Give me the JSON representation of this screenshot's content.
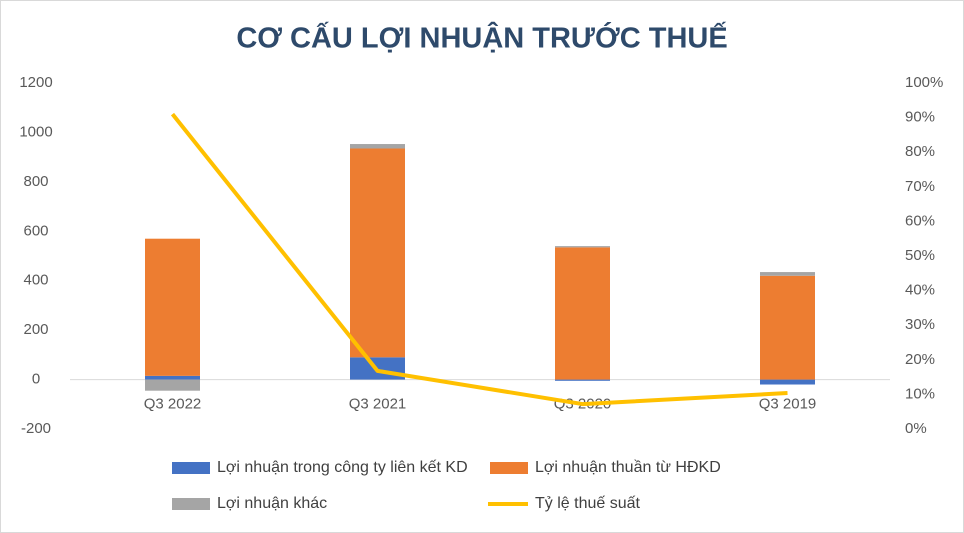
{
  "chart_data": {
    "type": "bar",
    "title": "CƠ CẤU LỢI NHUẬN TRƯỚC THUẾ",
    "categories": [
      "Q3 2022",
      "Q3 2021",
      "Q3 2020",
      "Q3 2019"
    ],
    "series": [
      {
        "name": "Lợi nhuận trong công ty liên kết KD",
        "color": "#4472c4",
        "values": [
          15,
          90,
          -5,
          -20
        ]
      },
      {
        "name": "Lợi nhuận thuần từ HĐKD",
        "color": "#ed7d31",
        "values": [
          555,
          845,
          535,
          420
        ]
      },
      {
        "name": "Lợi nhuận khác",
        "color": "#a5a5a5",
        "values": [
          -45,
          18,
          5,
          15
        ]
      },
      {
        "name": "Tỷ lệ thuế suất",
        "color": "#ffc000",
        "type": "line",
        "axis": "y2",
        "values": [
          91,
          16.8,
          7.2,
          10.4
        ]
      }
    ],
    "ylim": [
      -200,
      1200
    ],
    "yticks": [
      -200,
      0,
      200,
      400,
      600,
      800,
      1000,
      1200
    ],
    "y2lim": [
      0,
      100
    ],
    "y2ticks": [
      {
        "value": 0,
        "label": "0%"
      },
      {
        "value": 10,
        "label": "10%"
      },
      {
        "value": 20,
        "label": "20%"
      },
      {
        "value": 30,
        "label": "30%"
      },
      {
        "value": 40,
        "label": "40%"
      },
      {
        "value": 50,
        "label": "50%"
      },
      {
        "value": 60,
        "label": "60%"
      },
      {
        "value": 70,
        "label": "70%"
      },
      {
        "value": 80,
        "label": "80%"
      },
      {
        "value": 90,
        "label": "90%"
      },
      {
        "value": 100,
        "label": "100%"
      }
    ],
    "legend": "bottom"
  }
}
